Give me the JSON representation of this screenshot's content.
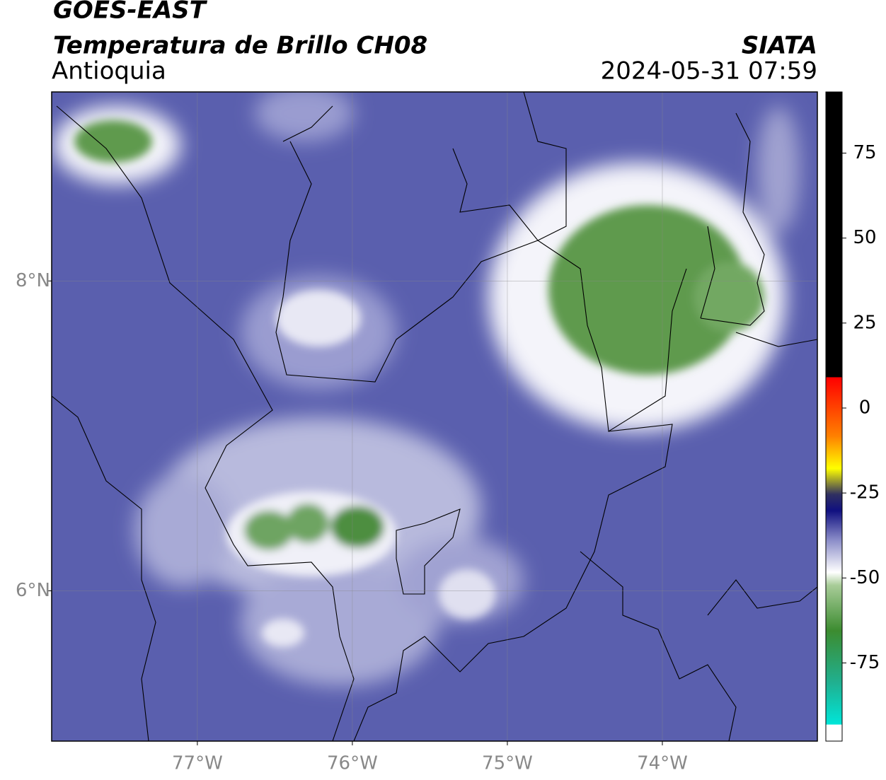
{
  "header": {
    "title": "GOES-EAST",
    "subtitle": "Temperatura de Brillo CH08",
    "region": "Antioquia",
    "source": "SIATA",
    "timestamp": "2024-05-31 07:59"
  },
  "map": {
    "xlim": [
      -77.94,
      -73.0
    ],
    "ylim": [
      5.03,
      9.22
    ],
    "xticks": [
      {
        "value": -77,
        "label": "77°W"
      },
      {
        "value": -76,
        "label": "76°W"
      },
      {
        "value": -75,
        "label": "75°W"
      },
      {
        "value": -74,
        "label": "74°W"
      }
    ],
    "yticks": [
      {
        "value": 8,
        "label": "8°N"
      },
      {
        "value": 6,
        "label": "6°N"
      }
    ]
  },
  "colorbar": {
    "range": [
      -98,
      93
    ],
    "ticks": [
      75,
      50,
      25,
      0,
      -25,
      -50,
      -75
    ]
  }
}
